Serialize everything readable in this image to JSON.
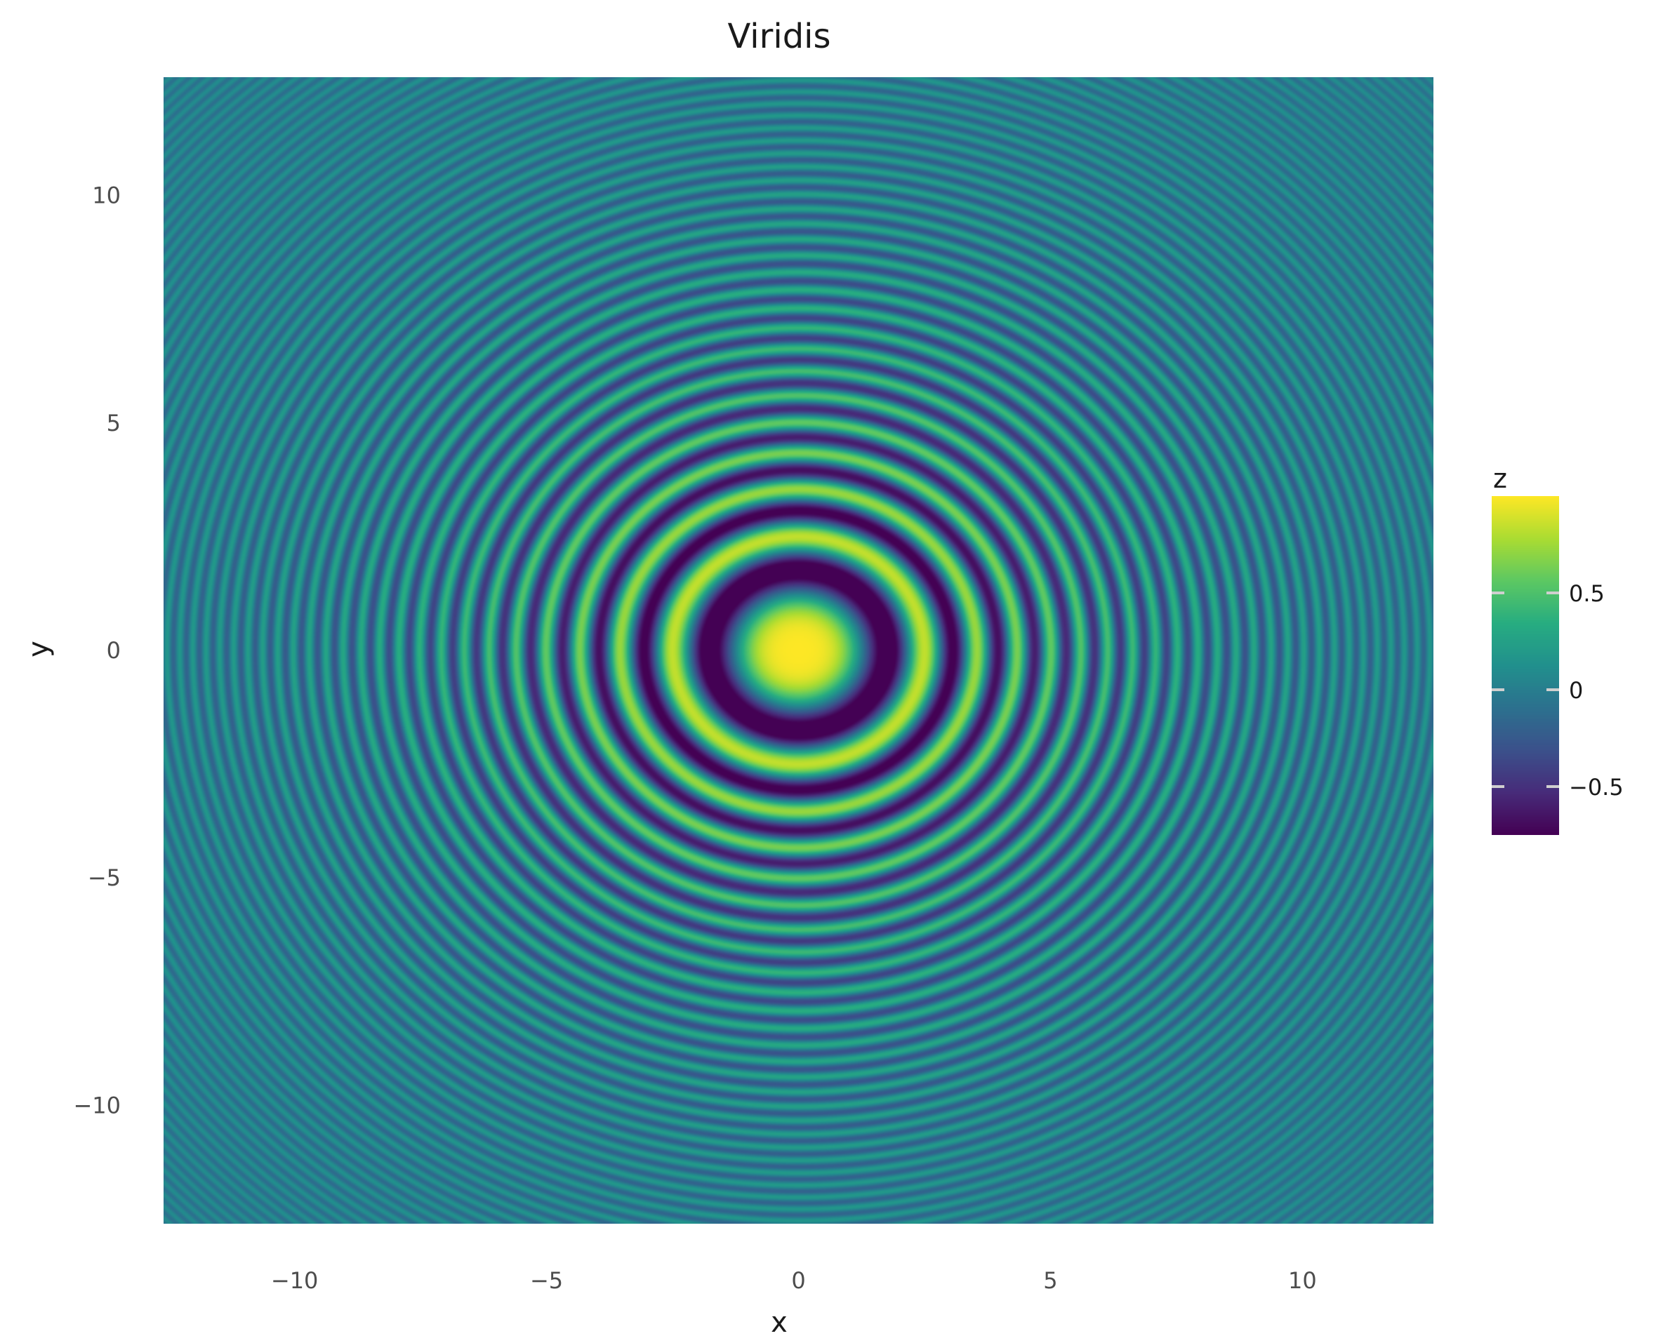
{
  "chart_data": {
    "type": "heatmap",
    "title": "Viridis",
    "xlabel": "x",
    "ylabel": "y",
    "function": "z = cos(x^2 + y^2) / (1 + 0.03 * (x^2 + y^2))",
    "xlim": [
      -12.6,
      12.6
    ],
    "ylim": [
      -12.6,
      12.6
    ],
    "x_ticks": [
      -10,
      -5,
      0,
      5,
      10
    ],
    "x_tick_labels": [
      "−10",
      "−5",
      "0",
      "5",
      "10"
    ],
    "y_ticks": [
      10,
      5,
      0,
      -5,
      -10
    ],
    "y_tick_labels": [
      "10",
      "5",
      "0",
      "−5",
      "−10"
    ],
    "colorscale": "viridis",
    "grid": false,
    "legend": {
      "title": "z",
      "placement": "right",
      "range": [
        -0.75,
        1.0
      ],
      "ticks": [
        0.5,
        0,
        -0.5
      ],
      "tick_labels": [
        "0.5",
        "0",
        "−0.5"
      ]
    }
  }
}
